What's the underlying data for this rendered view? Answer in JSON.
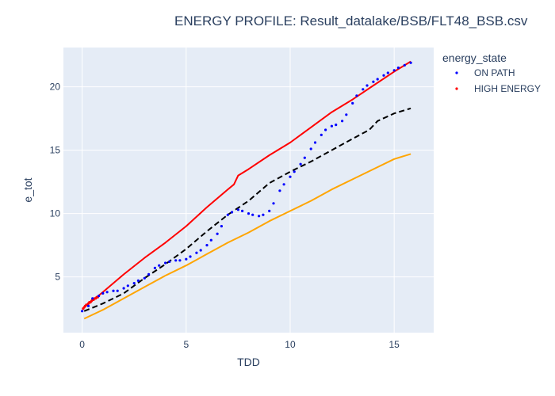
{
  "chart_data": {
    "type": "line",
    "title": "ENERGY PROFILE: Result_datalake/BSB/FLT48_BSB.csv",
    "xlabel": "TDD",
    "ylabel": "e_tot",
    "xlim": [
      -0.9,
      16.9
    ],
    "ylim": [
      0.6,
      23.1
    ],
    "x_ticks": [
      0,
      5,
      10,
      15
    ],
    "y_ticks": [
      5,
      10,
      15,
      20
    ],
    "grid": true,
    "plot_background": "#e5ecf6",
    "legend": {
      "title": "energy_state",
      "placement": "right",
      "entries": [
        {
          "name": "ON PATH",
          "color": "#0000ff"
        },
        {
          "name": "HIGH ENERGY",
          "color": "#ff0000"
        }
      ]
    },
    "series": [
      {
        "color": "#ff0000",
        "style": "solid",
        "x": [
          0.1,
          1,
          2,
          3,
          4,
          5,
          6,
          7,
          7.3,
          7.5,
          8,
          9,
          10,
          11,
          12,
          13,
          14,
          15,
          15.5,
          15.8
        ],
        "y": [
          2.6,
          3.8,
          5.2,
          6.5,
          7.7,
          9.0,
          10.5,
          11.9,
          12.3,
          13.0,
          13.5,
          14.6,
          15.6,
          16.8,
          18.0,
          19.0,
          20.1,
          21.2,
          21.7,
          22.0
        ]
      },
      {
        "color": "#ffa500",
        "style": "solid",
        "x": [
          0.1,
          1,
          2,
          3,
          4,
          5,
          6,
          7,
          8,
          9,
          10,
          11,
          12,
          13,
          14,
          15,
          15.8
        ],
        "y": [
          1.7,
          2.4,
          3.3,
          4.2,
          5.1,
          5.9,
          6.8,
          7.7,
          8.5,
          9.4,
          10.2,
          11.0,
          11.9,
          12.7,
          13.5,
          14.3,
          14.7
        ]
      },
      {
        "color": "#000000",
        "style": "dash",
        "x": [
          0.1,
          1,
          2,
          3,
          4,
          5,
          6,
          7,
          8,
          9,
          10,
          11,
          12,
          13,
          13.8,
          14.2,
          15,
          15.8
        ],
        "y": [
          2.3,
          2.9,
          3.7,
          4.9,
          6.0,
          7.2,
          8.6,
          9.9,
          11.0,
          12.4,
          13.3,
          14.1,
          15.0,
          15.9,
          16.6,
          17.3,
          17.9,
          18.3
        ]
      }
    ],
    "points": [
      {
        "state": "HIGH ENERGY",
        "color": "#ff0000",
        "x": [
          0.05,
          0.1,
          0.15,
          0.2,
          0.25,
          0.3,
          0.35,
          0.4,
          0.45,
          0.5,
          0.55,
          0.6,
          0.65,
          0.7,
          0.75
        ],
        "y": [
          2.5,
          2.6,
          2.7,
          2.8,
          2.8,
          2.9,
          3.0,
          3.0,
          3.1,
          3.2,
          3.2,
          3.3,
          3.3,
          3.4,
          3.4
        ]
      },
      {
        "state": "ON PATH",
        "color": "#0000ff",
        "x": [
          0,
          0.3,
          0.5,
          0.8,
          1,
          1.2,
          1.5,
          1.7,
          2,
          2.2,
          2.5,
          2.7,
          3,
          3.2,
          3.5,
          3.7,
          4,
          4.2,
          4.5,
          4.7,
          5,
          5.2,
          5.5,
          5.7,
          6,
          6.2,
          6.5,
          6.7,
          7,
          7.2,
          7.5,
          7.7,
          8,
          8.2,
          8.5,
          8.7,
          9,
          9.2,
          9.5,
          9.7,
          10,
          10.2,
          10.5,
          10.7,
          11,
          11.2,
          11.5,
          11.7,
          12,
          12.2,
          12.5,
          12.7,
          13,
          13.2,
          13.5,
          13.7,
          14,
          14.2,
          14.5,
          14.7,
          15,
          15.2,
          15.5,
          15.8
        ],
        "y": [
          2.3,
          2.7,
          3.3,
          3.5,
          3.7,
          3.8,
          3.9,
          3.9,
          4.1,
          4.3,
          4.5,
          4.7,
          4.9,
          5.2,
          5.7,
          5.9,
          6.1,
          6.2,
          6.3,
          6.3,
          6.4,
          6.6,
          6.9,
          7.1,
          7.5,
          7.9,
          8.4,
          9.0,
          9.9,
          10.1,
          10.3,
          10.2,
          10.0,
          9.9,
          9.8,
          9.9,
          10.2,
          10.8,
          11.8,
          12.3,
          12.9,
          13.3,
          13.9,
          14.4,
          15.1,
          15.6,
          16.2,
          16.6,
          16.9,
          17.0,
          17.3,
          17.8,
          18.7,
          19.3,
          19.8,
          20.1,
          20.4,
          20.6,
          20.9,
          21.1,
          21.3,
          21.5,
          21.7,
          21.9
        ]
      }
    ]
  }
}
